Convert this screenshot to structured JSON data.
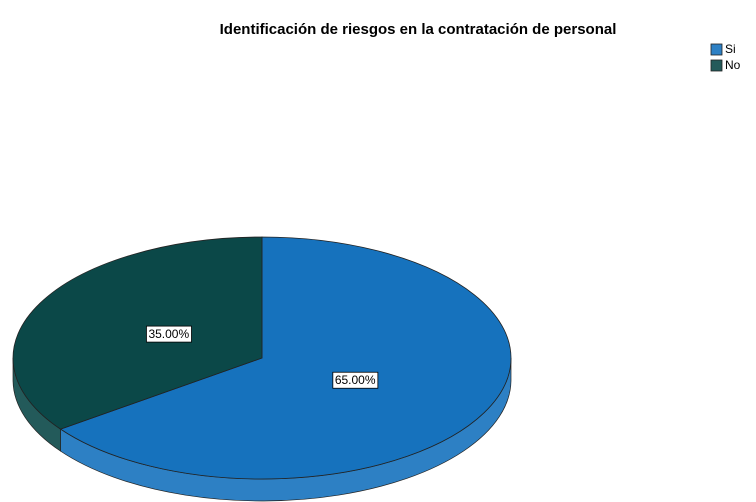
{
  "chart_data": {
    "type": "pie",
    "title": "Identificación de riesgos en la contratación de personal",
    "categories": [
      "Si",
      "No"
    ],
    "values": [
      65,
      35
    ],
    "value_labels": [
      "65.00%",
      "35.00%"
    ],
    "colors": [
      "#1672bd",
      "#0b4848"
    ],
    "legend": "top-right"
  }
}
